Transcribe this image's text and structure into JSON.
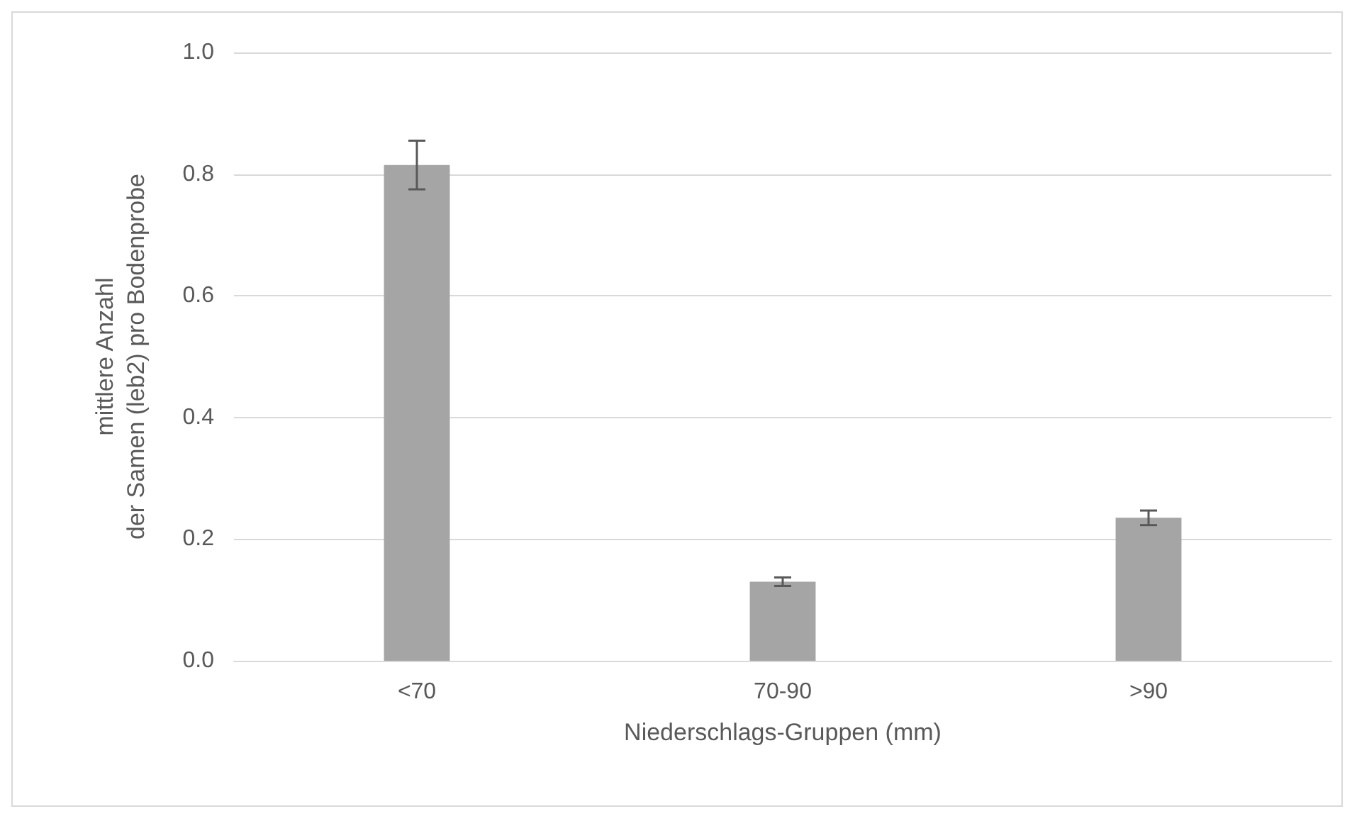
{
  "chart_data": {
    "type": "bar",
    "xlabel": "Niederschlags-Gruppen (mm)",
    "ylabel": "mittlere Anzahl\nder Samen (leb2) pro Bodenprobe",
    "categories": [
      "<70",
      "70-90",
      ">90"
    ],
    "series": [
      {
        "color": "#a5a5a5",
        "values": [
          0.815,
          0.13,
          0.235
        ],
        "errors": [
          0.04,
          0.007,
          0.012
        ]
      }
    ],
    "ylim": [
      0,
      1.0
    ],
    "yticks": [
      {
        "value": 0,
        "label": "0.0"
      },
      {
        "value": 0.2,
        "label": "0.2"
      },
      {
        "value": 0.4,
        "label": "0.4"
      },
      {
        "value": 0.6,
        "label": "0.6"
      },
      {
        "value": 0.8,
        "label": "0.8"
      },
      {
        "value": 1.0,
        "label": "1.0"
      }
    ],
    "grid": "y"
  }
}
